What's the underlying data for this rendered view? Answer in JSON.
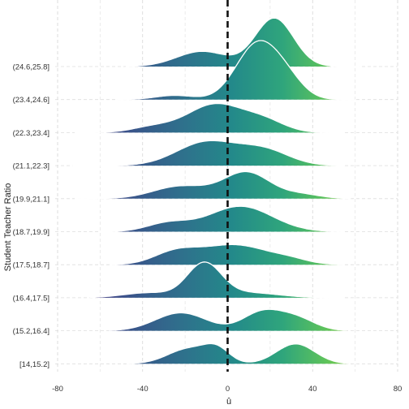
{
  "chart_data": {
    "type": "ridgeline",
    "xlabel": "û",
    "ylabel": "Student Teacher Ratio",
    "xlim": [
      -80,
      80
    ],
    "x_ticks": [
      -80,
      -40,
      0,
      40,
      80
    ],
    "reference_line_x": 0,
    "grid": true,
    "fill": "viridis gradient along x",
    "categories": [
      "[14,15.2]",
      "(15.2,16.4]",
      "(16.4,17.5]",
      "(17.5,18.7]",
      "(18.7,19.9]",
      "(19.9,21.1]",
      "(21.1,22.3]",
      "(22.3,23.4]",
      "(23.4,24.6]",
      "(24.6,25.8]"
    ],
    "series": [
      {
        "category": "[14,15.2]",
        "range": [
          -47,
          57
        ],
        "peaks": [
          {
            "mu": -18,
            "sd": 10,
            "h": 0.55
          },
          {
            "mu": -5,
            "sd": 6,
            "h": 0.45
          },
          {
            "mu": 32,
            "sd": 9,
            "h": 0.72
          }
        ]
      },
      {
        "category": "(15.2,16.4]",
        "range": [
          -56,
          56
        ],
        "peaks": [
          {
            "mu": -22,
            "sd": 12,
            "h": 0.65
          },
          {
            "mu": 16,
            "sd": 9,
            "h": 0.65
          },
          {
            "mu": 32,
            "sd": 9,
            "h": 0.45
          }
        ]
      },
      {
        "category": "(16.4,17.5]",
        "range": [
          -65,
          55
        ],
        "peaks": [
          {
            "mu": -11,
            "sd": 8,
            "h": 1.22
          },
          {
            "mu": -37,
            "sd": 12,
            "h": 0.18
          },
          {
            "mu": 10,
            "sd": 14,
            "h": 0.18
          }
        ]
      },
      {
        "category": "(17.5,18.7]",
        "range": [
          -55,
          55
        ],
        "peaks": [
          {
            "mu": -25,
            "sd": 10,
            "h": 0.38
          },
          {
            "mu": 3,
            "sd": 17,
            "h": 0.72
          },
          {
            "mu": 30,
            "sd": 8,
            "h": 0.1
          }
        ]
      },
      {
        "category": "(18.7,19.9]",
        "range": [
          -60,
          55
        ],
        "peaks": [
          {
            "mu": 6,
            "sd": 15,
            "h": 0.92
          },
          {
            "mu": -28,
            "sd": 10,
            "h": 0.3
          }
        ]
      },
      {
        "category": "(19.9,21.1]",
        "range": [
          -72,
          58
        ],
        "peaks": [
          {
            "mu": 9,
            "sd": 11,
            "h": 0.95
          },
          {
            "mu": -22,
            "sd": 13,
            "h": 0.45
          },
          {
            "mu": 35,
            "sd": 9,
            "h": 0.15
          }
        ]
      },
      {
        "category": "(21.1,22.3]",
        "range": [
          -73,
          55
        ],
        "peaks": [
          {
            "mu": -10,
            "sd": 14,
            "h": 0.85
          },
          {
            "mu": 17,
            "sd": 12,
            "h": 0.55
          }
        ]
      },
      {
        "category": "(22.3,23.4]",
        "range": [
          -72,
          55
        ],
        "peaks": [
          {
            "mu": -6,
            "sd": 13,
            "h": 1.02
          },
          {
            "mu": 17,
            "sd": 10,
            "h": 0.4
          },
          {
            "mu": -35,
            "sd": 10,
            "h": 0.2
          }
        ]
      },
      {
        "category": "(23.4,24.6]",
        "range": [
          -52,
          60
        ],
        "peaks": [
          {
            "mu": 14,
            "sd": 10,
            "h": 2.0
          },
          {
            "mu": 28,
            "sd": 8,
            "h": 0.55
          },
          {
            "mu": -25,
            "sd": 9,
            "h": 0.15
          }
        ]
      },
      {
        "category": "(24.6,25.8]",
        "range": [
          -48,
          62
        ],
        "peaks": [
          {
            "mu": 22,
            "sd": 9,
            "h": 1.75
          },
          {
            "mu": -12,
            "sd": 12,
            "h": 0.55
          }
        ]
      }
    ]
  }
}
